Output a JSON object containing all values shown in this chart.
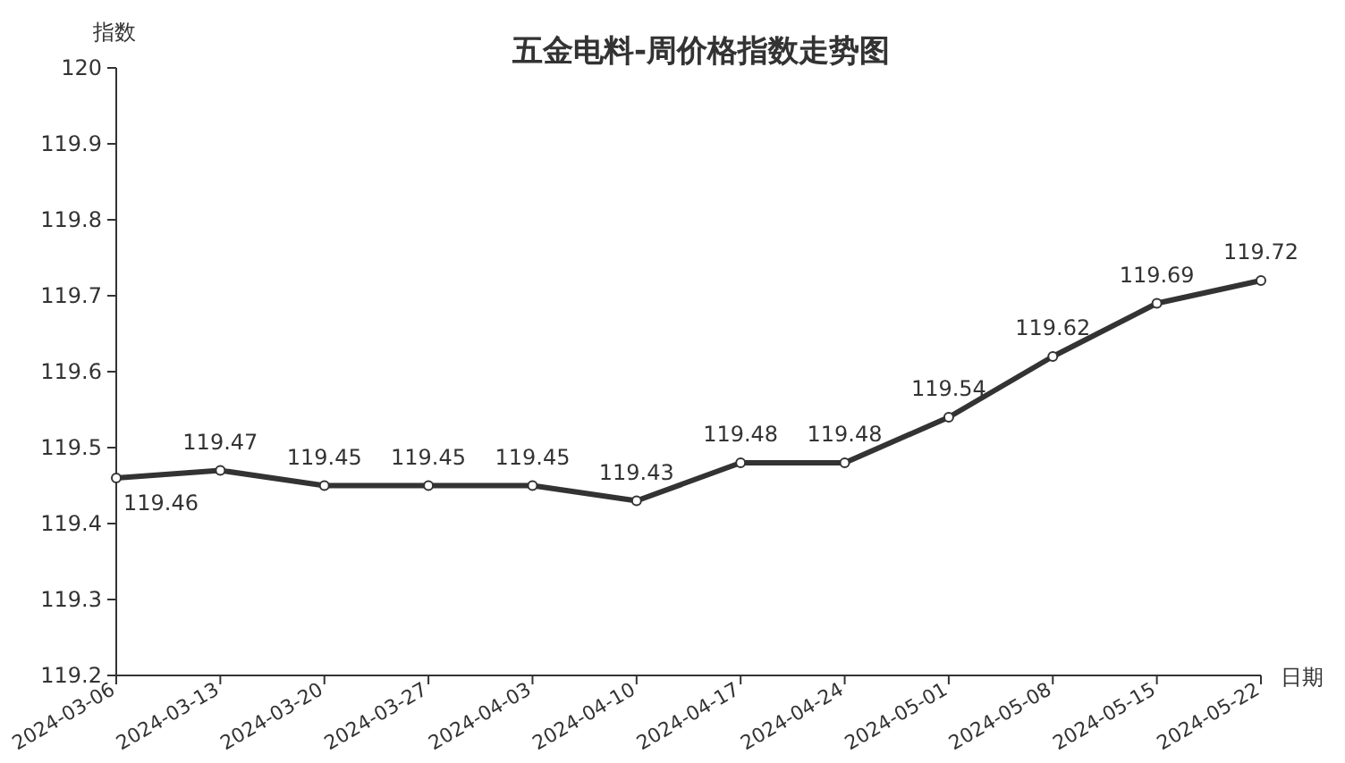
{
  "chart_data": {
    "type": "line",
    "title": "五金电料-周价格指数走势图",
    "ylabel": "指数",
    "xlabel": "日期",
    "categories": [
      "2024-03-06",
      "2024-03-13",
      "2024-03-20",
      "2024-03-27",
      "2024-04-03",
      "2024-04-10",
      "2024-04-17",
      "2024-04-24",
      "2024-05-01",
      "2024-05-08",
      "2024-05-15",
      "2024-05-22"
    ],
    "series": [
      {
        "color": "#333333",
        "values": [
          119.46,
          119.47,
          119.45,
          119.45,
          119.45,
          119.43,
          119.48,
          119.48,
          119.54,
          119.62,
          119.69,
          119.72
        ]
      }
    ],
    "ylim": [
      119.2,
      120
    ],
    "yticks": [
      119.2,
      119.3,
      119.4,
      119.5,
      119.6,
      119.7,
      119.8,
      119.9,
      120
    ],
    "data_labels": true,
    "marker": "circle",
    "line_style": "solid",
    "grid": false
  }
}
